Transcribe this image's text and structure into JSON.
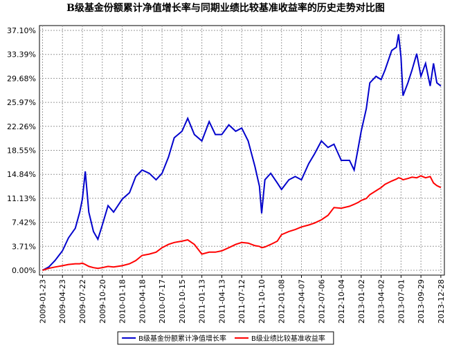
{
  "chart_data": {
    "type": "line",
    "title": "B级基金份额累计净值增长率与同期业绩比较基准收益率的历史走势对比图",
    "x": [
      "2009-01-23",
      "2009-02-20",
      "2009-03-20",
      "2009-04-23",
      "2009-05-20",
      "2009-06-20",
      "2009-07-10",
      "2009-07-22",
      "2009-08-04",
      "2009-08-20",
      "2009-09-10",
      "2009-09-30",
      "2009-10-20",
      "2009-11-15",
      "2009-12-10",
      "2010-01-18",
      "2010-02-20",
      "2010-03-20",
      "2010-04-18",
      "2010-05-20",
      "2010-06-20",
      "2010-07-17",
      "2010-08-15",
      "2010-09-10",
      "2010-10-15",
      "2010-11-10",
      "2010-12-10",
      "2011-01-13",
      "2011-02-15",
      "2011-03-15",
      "2011-04-13",
      "2011-05-15",
      "2011-06-15",
      "2011-07-12",
      "2011-08-10",
      "2011-09-10",
      "2011-09-30",
      "2011-10-10",
      "2011-10-25",
      "2011-11-20",
      "2011-12-20",
      "2012-01-08",
      "2012-02-10",
      "2012-03-10",
      "2012-04-07",
      "2012-05-10",
      "2012-06-05",
      "2012-07-06",
      "2012-08-05",
      "2012-09-01",
      "2012-10-04",
      "2012-11-10",
      "2012-12-01",
      "2012-12-20",
      "2013-01-02",
      "2013-01-25",
      "2013-02-10",
      "2013-03-10",
      "2013-04-02",
      "2013-04-20",
      "2013-05-20",
      "2013-06-10",
      "2013-06-20",
      "2013-07-01",
      "2013-07-10",
      "2013-08-01",
      "2013-08-20",
      "2013-09-10",
      "2013-09-29",
      "2013-10-20",
      "2013-11-10",
      "2013-11-25",
      "2013-12-10",
      "2013-12-28"
    ],
    "series": [
      {
        "name": "B级基金份额累计净值增长率",
        "color": "#0000cc",
        "values": [
          0,
          0.5,
          1.5,
          3,
          5,
          6.5,
          9,
          11,
          15.3,
          9,
          6,
          4.8,
          7,
          10,
          9,
          11,
          12,
          14.5,
          15.5,
          15,
          14,
          15,
          17.5,
          20.5,
          21.5,
          23.5,
          21,
          20,
          23,
          21,
          21,
          22.5,
          21.5,
          22,
          20,
          16,
          13,
          8.8,
          14,
          15,
          13.5,
          12.5,
          14,
          14.5,
          14,
          16.5,
          18,
          20,
          19,
          19.5,
          17,
          17,
          15.5,
          19,
          21.5,
          25,
          29,
          30,
          29.5,
          31,
          34,
          34.5,
          36.5,
          33,
          27,
          29,
          31,
          33.5,
          30,
          32,
          28.5,
          32,
          29,
          28.5
        ]
      },
      {
        "name": "B级业绩比较基准收益率",
        "color": "#ff0000",
        "values": [
          0,
          0.3,
          0.5,
          0.7,
          0.9,
          1.0,
          1.0,
          1.1,
          0.9,
          0.6,
          0.4,
          0.3,
          0.4,
          0.6,
          0.5,
          0.7,
          1.0,
          1.5,
          2.3,
          2.5,
          2.8,
          3.5,
          4.0,
          4.3,
          4.5,
          4.7,
          4.0,
          2.5,
          2.8,
          2.8,
          3.0,
          3.5,
          4.0,
          4.3,
          4.2,
          3.8,
          3.7,
          3.5,
          3.6,
          4.0,
          4.5,
          5.5,
          6.0,
          6.3,
          6.7,
          7.0,
          7.3,
          7.8,
          8.5,
          9.7,
          9.6,
          9.9,
          10.2,
          10.5,
          10.8,
          11.1,
          11.7,
          12.3,
          12.8,
          13.3,
          13.8,
          14.1,
          14.3,
          14.2,
          14.0,
          14.2,
          14.4,
          14.3,
          14.6,
          14.3,
          14.5,
          13.5,
          13.1,
          12.8
        ]
      }
    ],
    "xlim": [
      "2009-01-09",
      "2014-01-13"
    ],
    "xticks": [
      "2009-01-23",
      "2009-04-23",
      "2009-07-22",
      "2009-10-20",
      "2010-01-18",
      "2010-04-18",
      "2010-07-17",
      "2010-10-15",
      "2011-01-13",
      "2011-04-13",
      "2011-07-12",
      "2011-10-10",
      "2012-01-08",
      "2012-04-07",
      "2012-07-06",
      "2012-10-04",
      "2013-01-02",
      "2013-04-02",
      "2013-07-01",
      "2013-09-29",
      "2013-12-28"
    ],
    "ylim": [
      -0.75,
      37.85
    ],
    "yticks": [
      {
        "value": 0,
        "label": "0.00%"
      },
      {
        "value": 3.71,
        "label": "3.71%"
      },
      {
        "value": 7.42,
        "label": "7.42%"
      },
      {
        "value": 11.13,
        "label": "11.13%"
      },
      {
        "value": 14.84,
        "label": "14.84%"
      },
      {
        "value": 18.55,
        "label": "18.55%"
      },
      {
        "value": 22.26,
        "label": "22.26%"
      },
      {
        "value": 25.97,
        "label": "25.97%"
      },
      {
        "value": 29.68,
        "label": "29.68%"
      },
      {
        "value": 33.39,
        "label": "33.39%"
      },
      {
        "value": 37.1,
        "label": "37.10%"
      }
    ],
    "grid": true
  }
}
